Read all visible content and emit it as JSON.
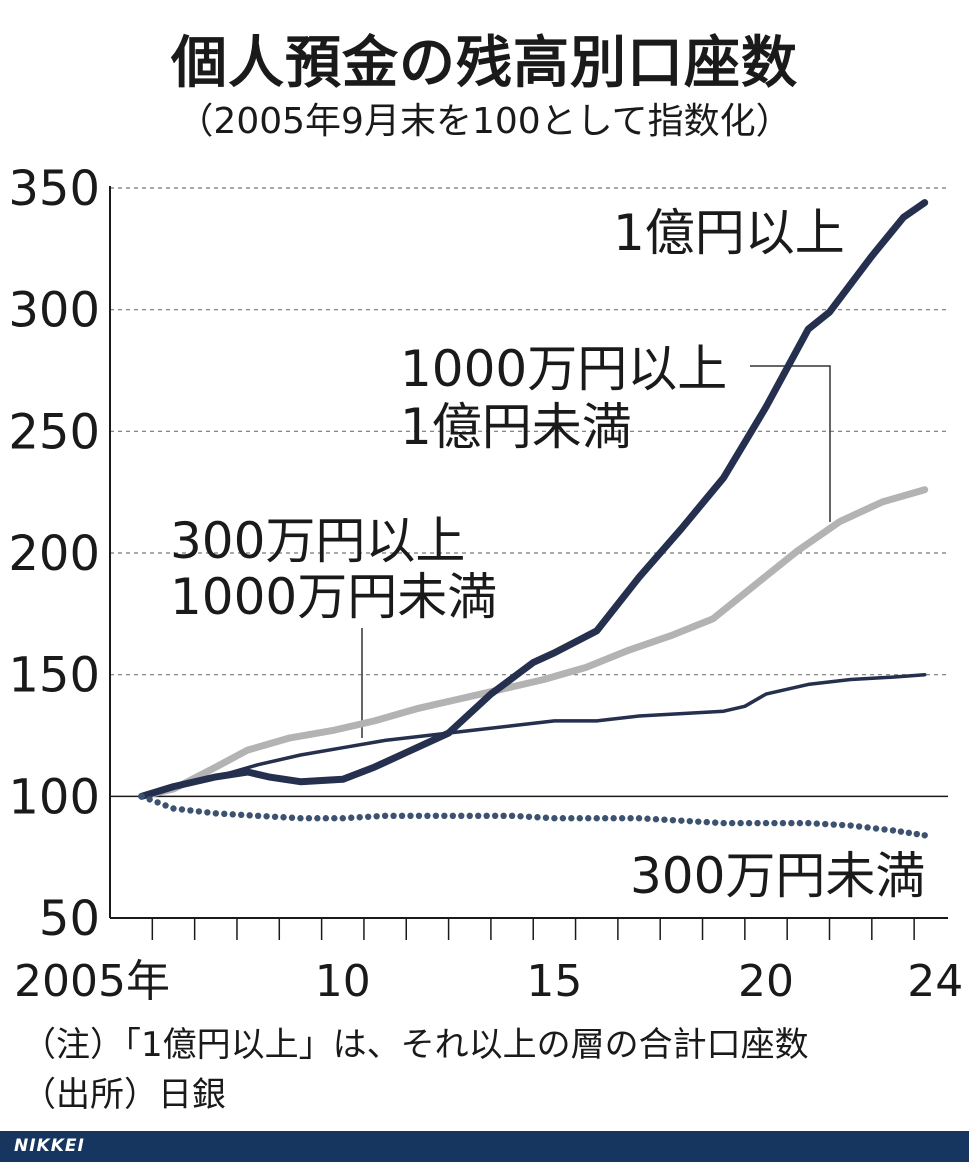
{
  "title": "個人預金の残高別口座数",
  "subtitle": "（2005年9月末を100として指数化）",
  "notes": [
    "（注）「1億円以上」は、それ以上の層の合計口座数",
    "（出所）日銀"
  ],
  "footer": {
    "logo": "NIKKEI",
    "background": "#16365f"
  },
  "chart_data": {
    "type": "line",
    "ylim": [
      50,
      350
    ],
    "yticks": [
      50,
      100,
      150,
      200,
      250,
      300,
      350
    ],
    "xlim": [
      2005,
      2024.8
    ],
    "xtick_labels": [
      {
        "x": 2005,
        "label": "2005年"
      },
      {
        "x": 2010,
        "label": "10"
      },
      {
        "x": 2015,
        "label": "15"
      },
      {
        "x": 2020,
        "label": "20"
      },
      {
        "x": 2024,
        "label": "24"
      }
    ],
    "grid": "dashed horizontal",
    "series": [
      {
        "name": "1億円以上",
        "color": "#252f4e",
        "style": "thick",
        "x": [
          2005.75,
          2006.5,
          2007.5,
          2008.25,
          2008.75,
          2009.5,
          2010.5,
          2011.25,
          2012.0,
          2013.0,
          2014.0,
          2015.0,
          2015.5,
          2016.5,
          2017.5,
          2018.5,
          2019.5,
          2020.5,
          2021.5,
          2022.0,
          2023.0,
          2023.75,
          2024.25
        ],
        "y": [
          100,
          104,
          108,
          110,
          108,
          106,
          107,
          112,
          118,
          126,
          142,
          155,
          159,
          168,
          190,
          210,
          231,
          260,
          292,
          299,
          322,
          338,
          344
        ]
      },
      {
        "name": "1000万円以上1億円未満",
        "color": "#b3b3b3",
        "style": "thick",
        "x": [
          2005.75,
          2006.5,
          2007.5,
          2008.25,
          2009.25,
          2010.25,
          2011.25,
          2012.25,
          2013.25,
          2014.25,
          2015.25,
          2016.25,
          2017.25,
          2018.25,
          2019.25,
          2020.25,
          2021.25,
          2022.25,
          2023.25,
          2024.25
        ],
        "y": [
          100,
          103,
          112,
          119,
          124,
          127,
          131,
          136,
          140,
          144,
          148,
          153,
          160,
          166,
          173,
          187,
          201,
          213,
          221,
          226
        ]
      },
      {
        "name": "300万円以上1000万円未満",
        "color": "#252f4e",
        "style": "thin",
        "x": [
          2005.75,
          2006.5,
          2007.5,
          2008.5,
          2009.5,
          2010.5,
          2011.5,
          2012.5,
          2013.5,
          2014.5,
          2015.5,
          2016.5,
          2017.5,
          2018.5,
          2019.5,
          2020.0,
          2020.5,
          2021.5,
          2022.5,
          2023.5,
          2024.25
        ],
        "y": [
          100,
          104,
          108,
          113,
          117,
          120,
          123,
          125,
          127,
          129,
          131,
          131,
          133,
          134,
          135,
          137,
          142,
          146,
          148,
          149,
          150
        ]
      },
      {
        "name": "300万円未満",
        "color": "#3d5270",
        "style": "dotted",
        "x": [
          2005.75,
          2006.5,
          2007.5,
          2008.5,
          2009.5,
          2010.5,
          2011.5,
          2012.5,
          2013.5,
          2014.5,
          2015.5,
          2016.5,
          2017.5,
          2018.5,
          2019.5,
          2020.5,
          2021.5,
          2022.5,
          2023.5,
          2024.25
        ],
        "y": [
          100,
          95,
          93,
          92,
          91,
          91,
          92,
          92,
          92,
          92,
          91,
          91,
          91,
          90,
          89,
          89,
          89,
          88,
          86,
          84
        ]
      }
    ],
    "labels": {
      "s1": "1億円以上",
      "s2": [
        "1000万円以上",
        "1億円未満"
      ],
      "s3": [
        "300万円以上",
        "1000万円未満"
      ],
      "s4": "300万円未満"
    }
  }
}
